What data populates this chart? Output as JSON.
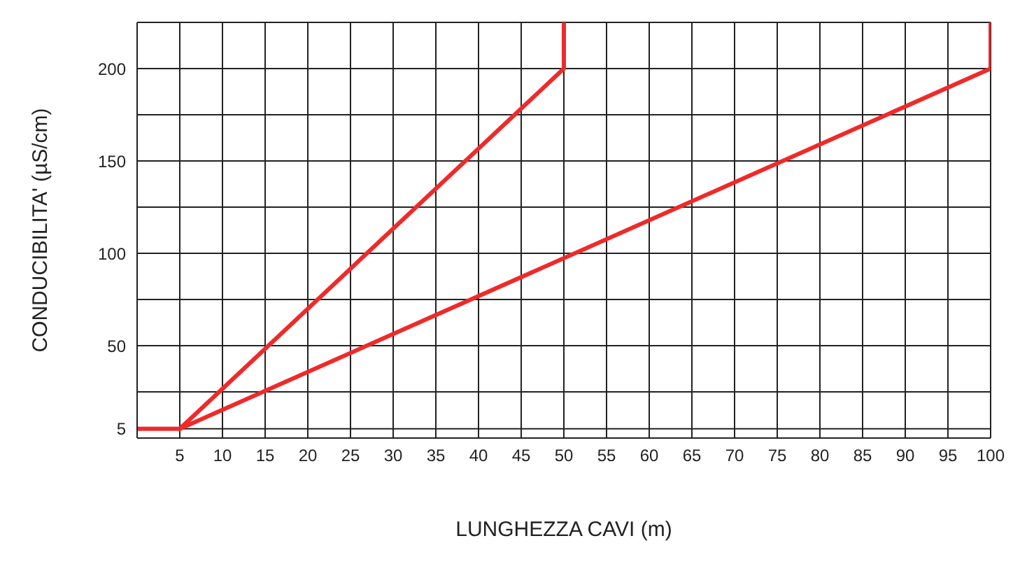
{
  "chart_data": {
    "type": "line",
    "xlabel": "LUNGHEZZA CAVI (m)",
    "ylabel": "CONDUCIBILITA' (µS/cm)",
    "xlim": [
      0,
      100
    ],
    "ylim": [
      0,
      225
    ],
    "xticks": [
      {
        "value": 0,
        "label": null
      },
      5,
      10,
      15,
      20,
      25,
      30,
      35,
      40,
      45,
      50,
      55,
      60,
      65,
      70,
      75,
      80,
      85,
      90,
      95,
      100
    ],
    "yticks": [
      5,
      {
        "value": 25,
        "label": null
      },
      50,
      {
        "value": 75,
        "label": null
      },
      100,
      {
        "value": 125,
        "label": null
      },
      150,
      {
        "value": 175,
        "label": null
      },
      200,
      {
        "value": 225,
        "label": null
      }
    ],
    "grid": true,
    "series": [
      {
        "color": "#ee2a2a",
        "x": [
          0,
          5,
          50,
          50
        ],
        "values": [
          5,
          5,
          200,
          225
        ]
      },
      {
        "color": "#ee2a2a",
        "x": [
          5,
          100,
          100
        ],
        "values": [
          5,
          200,
          225
        ]
      }
    ]
  }
}
